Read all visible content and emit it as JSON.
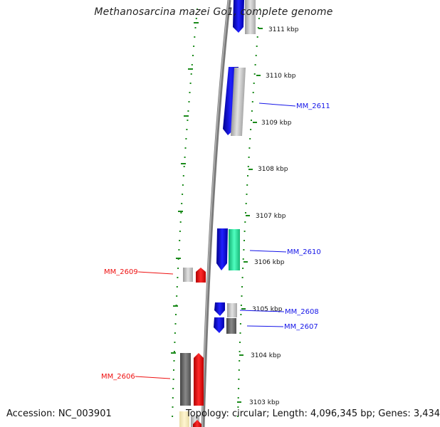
{
  "title": "Methanosarcina mazei Go1, complete genome",
  "footer": {
    "accession": "Accession: NC_003901",
    "topology": "Topology: circular; Length: 4,096,345 bp; Genes: 3,434"
  },
  "scale_labels": [
    "3111 kbp",
    "3110 kbp",
    "3109 kbp",
    "3108 kbp",
    "3107 kbp",
    "3106 kbp",
    "3105 kbp",
    "3104 kbp",
    "3103 kbp"
  ],
  "gene_labels": {
    "forward": [
      "MM_2611",
      "MM_2610",
      "MM_2608",
      "MM_2607"
    ],
    "reverse": [
      "MM_2609",
      "MM_2606"
    ]
  },
  "colors": {
    "forward_gene": "#1515e8",
    "reverse_gene": "#ee1111",
    "rna_gene": "#33e0a0",
    "cds_light": "#c4c4c4",
    "cds_dark": "#6e6e6e",
    "scale_tick": "#1a8a1a",
    "backbone": "#808080"
  }
}
